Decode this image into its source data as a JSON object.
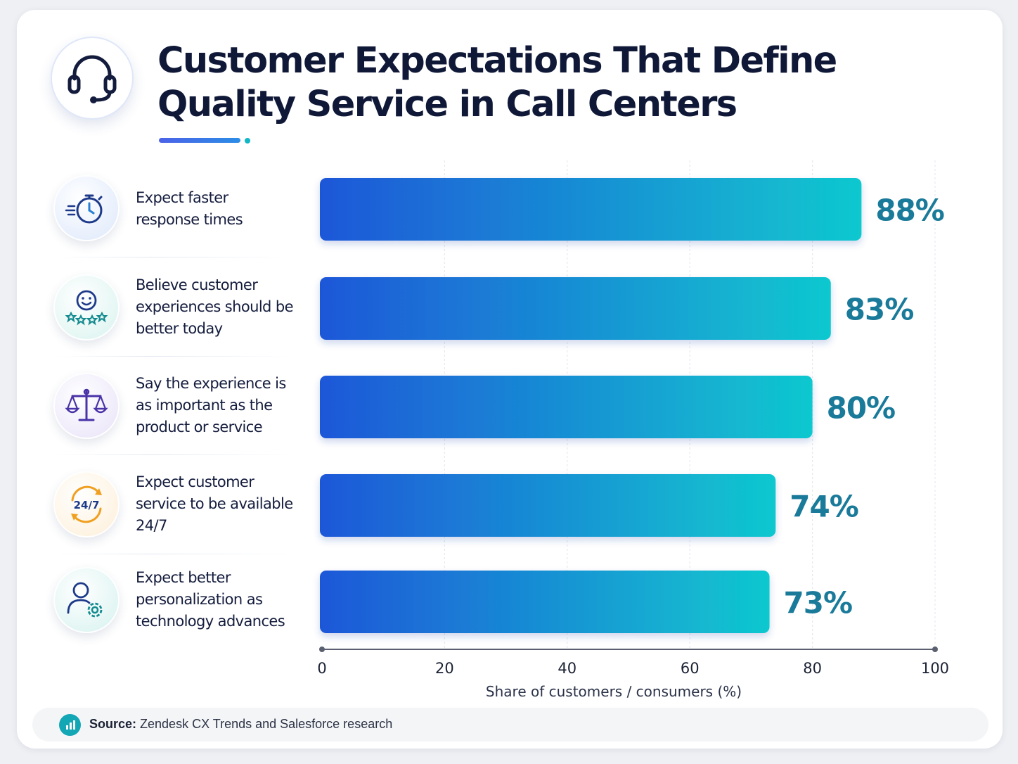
{
  "title": {
    "line1": "Customer Expectations That Define",
    "line2": "Quality Service in Call Centers"
  },
  "header_icon": "headset-icon",
  "colors": {
    "title": "#0f1837",
    "bar_start": "#1f57d8",
    "bar_end": "#10c8cf",
    "value_label": "#1a7a9a",
    "accent": "#12b6c6"
  },
  "rows": [
    {
      "icon": "stopwatch-icon",
      "lines": [
        "Expect faster",
        "response times"
      ]
    },
    {
      "icon": "smiley-stars-icon",
      "lines": [
        "Believe customer",
        "experiences should be",
        "better today"
      ]
    },
    {
      "icon": "balance-scale-icon",
      "lines": [
        "Say the experience is",
        "as important as the",
        "product or service"
      ]
    },
    {
      "icon": "clock-24-7-icon",
      "lines": [
        "Expect customer",
        "service to be available",
        "24/7"
      ]
    },
    {
      "icon": "user-gear-icon",
      "lines": [
        "Expect better",
        "personalization as",
        "technology advances"
      ]
    }
  ],
  "chart_data": {
    "type": "bar",
    "orientation": "horizontal",
    "categories": [
      "Expect faster response times",
      "Believe customer experiences should be better today",
      "Say the experience is as important as the product or service",
      "Expect customer service to be available 24/7",
      "Expect better personalization as technology advances"
    ],
    "values": [
      88,
      83,
      80,
      74,
      73
    ],
    "value_labels": [
      "88%",
      "83%",
      "80%",
      "74%",
      "73%"
    ],
    "xlabel": "Share of customers / consumers (%)",
    "xlim": [
      0,
      100
    ],
    "xticks": [
      0,
      20,
      40,
      60,
      80,
      100
    ],
    "xtick_labels": [
      "0",
      "20",
      "40",
      "60",
      "80",
      "100"
    ],
    "grid": true
  },
  "footer": {
    "icon": "bar-chart-icon",
    "source_label": "Source:",
    "source_text": " Zendesk CX Trends and Salesforce research"
  }
}
